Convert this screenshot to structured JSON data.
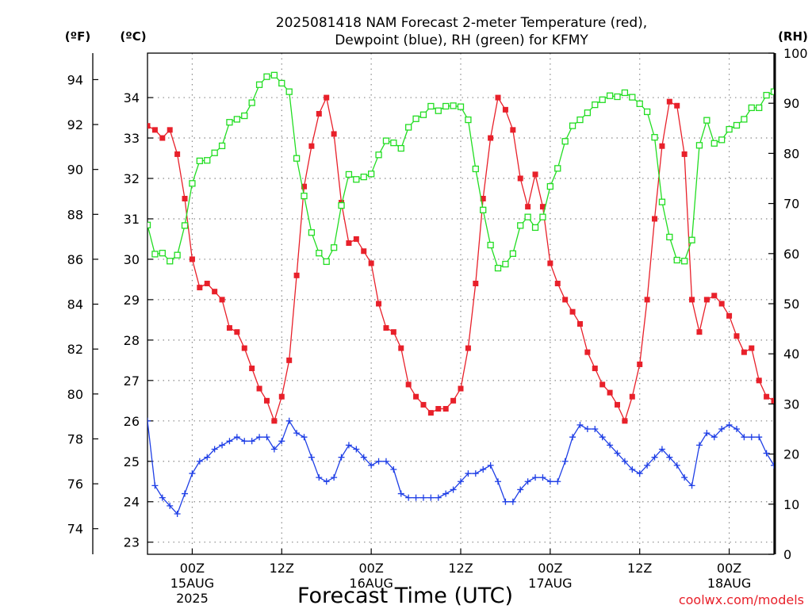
{
  "chart_data": {
    "type": "line",
    "title": "2025081418 NAM Forecast 2-meter Temperature (red),",
    "subtitle": "Dewpoint (blue), RH (green) for KFMY",
    "xlabel": "Forecast Time (UTC)",
    "credit": "coolwx.com/models",
    "units": {
      "fahrenheit": "(ºF)",
      "celsius": "(ºC)",
      "rh": "(RH)"
    },
    "axes": {
      "x_range_hours": [
        0,
        84
      ],
      "celsius_range": [
        22.7,
        35.1
      ],
      "fahrenheit_ticks": [
        74,
        76,
        78,
        80,
        82,
        84,
        86,
        88,
        90,
        92,
        94
      ],
      "celsius_ticks": [
        23,
        24,
        25,
        26,
        27,
        28,
        29,
        30,
        31,
        32,
        33,
        34
      ],
      "rh_range": [
        0,
        100
      ],
      "rh_ticks": [
        0,
        10,
        20,
        30,
        40,
        50,
        60,
        70,
        80,
        90,
        100
      ],
      "grid": true
    },
    "x_ticks": [
      {
        "hour": 6,
        "hh": "00Z",
        "date": "15AUG",
        "year": "2025"
      },
      {
        "hour": 18,
        "hh": "12Z",
        "date": "",
        "year": ""
      },
      {
        "hour": 30,
        "hh": "00Z",
        "date": "16AUG",
        "year": ""
      },
      {
        "hour": 42,
        "hh": "12Z",
        "date": "",
        "year": ""
      },
      {
        "hour": 54,
        "hh": "00Z",
        "date": "17AUG",
        "year": ""
      },
      {
        "hour": 66,
        "hh": "12Z",
        "date": "",
        "year": ""
      },
      {
        "hour": 78,
        "hh": "00Z",
        "date": "18AUG",
        "year": ""
      }
    ],
    "series": [
      {
        "name": "Temperature",
        "axis": "celsius",
        "color": "#e8202a",
        "marker": "filled-square",
        "values": [
          33.3,
          33.2,
          33.0,
          33.2,
          32.6,
          31.5,
          30.0,
          29.3,
          29.4,
          29.2,
          29.0,
          28.3,
          28.2,
          27.8,
          27.3,
          26.8,
          26.5,
          26.0,
          26.6,
          27.5,
          29.6,
          31.8,
          32.8,
          33.6,
          34.0,
          33.1,
          31.4,
          30.4,
          30.5,
          30.2,
          29.9,
          28.9,
          28.3,
          28.2,
          27.8,
          26.9,
          26.6,
          26.4,
          26.2,
          26.3,
          26.3,
          26.5,
          26.8,
          27.8,
          29.4,
          31.5,
          33.0,
          34.0,
          33.7,
          33.2,
          32.0,
          31.3,
          32.1,
          31.3,
          29.9,
          29.4,
          29.0,
          28.7,
          28.4,
          27.7,
          27.3,
          26.9,
          26.7,
          26.4,
          26.0,
          26.6,
          27.4,
          29.0,
          31.0,
          32.8,
          33.9,
          33.8,
          32.6,
          29.0,
          28.2,
          29.0,
          29.1,
          28.9,
          28.6,
          28.1,
          27.7,
          27.8,
          27.0,
          26.6,
          26.5
        ]
      },
      {
        "name": "Dewpoint",
        "axis": "celsius",
        "color": "#1f3fe6",
        "marker": "plus",
        "values": [
          26.0,
          24.4,
          24.1,
          23.9,
          23.7,
          24.2,
          24.7,
          25.0,
          25.1,
          25.3,
          25.4,
          25.5,
          25.6,
          25.5,
          25.5,
          25.6,
          25.6,
          25.3,
          25.5,
          26.0,
          25.7,
          25.6,
          25.1,
          24.6,
          24.5,
          24.6,
          25.1,
          25.4,
          25.3,
          25.1,
          24.9,
          25.0,
          25.0,
          24.8,
          24.2,
          24.1,
          24.1,
          24.1,
          24.1,
          24.1,
          24.2,
          24.3,
          24.5,
          24.7,
          24.7,
          24.8,
          24.9,
          24.5,
          24.0,
          24.0,
          24.3,
          24.5,
          24.6,
          24.6,
          24.5,
          24.5,
          25.0,
          25.6,
          25.9,
          25.8,
          25.8,
          25.6,
          25.4,
          25.2,
          25.0,
          24.8,
          24.7,
          24.9,
          25.1,
          25.3,
          25.1,
          24.9,
          24.6,
          24.4,
          25.4,
          25.7,
          25.6,
          25.8,
          25.9,
          25.8,
          25.6,
          25.6,
          25.6,
          25.2,
          24.9
        ]
      },
      {
        "name": "RH",
        "axis": "rh",
        "color": "#22dd22",
        "marker": "open-square",
        "values": [
          65.7,
          59.9,
          60.1,
          58.5,
          59.7,
          65.6,
          74.0,
          78.5,
          78.6,
          80.1,
          81.5,
          86.2,
          86.8,
          87.5,
          90.1,
          93.7,
          95.3,
          95.6,
          94.0,
          92.3,
          79.0,
          71.5,
          64.2,
          60.1,
          58.4,
          61.2,
          69.6,
          75.8,
          74.8,
          75.3,
          75.9,
          79.7,
          82.5,
          82.1,
          81.0,
          85.2,
          86.9,
          87.7,
          89.4,
          88.5,
          89.4,
          89.5,
          89.3,
          86.7,
          76.9,
          68.7,
          61.7,
          57.1,
          57.9,
          60.0,
          65.6,
          67.3,
          65.2,
          67.3,
          73.4,
          77.0,
          82.4,
          85.5,
          86.7,
          88.1,
          89.7,
          90.7,
          91.5,
          91.3,
          92.1,
          91.2,
          89.9,
          88.3,
          83.2,
          70.3,
          63.3,
          58.7,
          58.5,
          62.7,
          81.6,
          86.6,
          82.0,
          82.7,
          84.8,
          85.6,
          86.8,
          89.1,
          89.1,
          91.6,
          92.3
        ]
      }
    ]
  }
}
